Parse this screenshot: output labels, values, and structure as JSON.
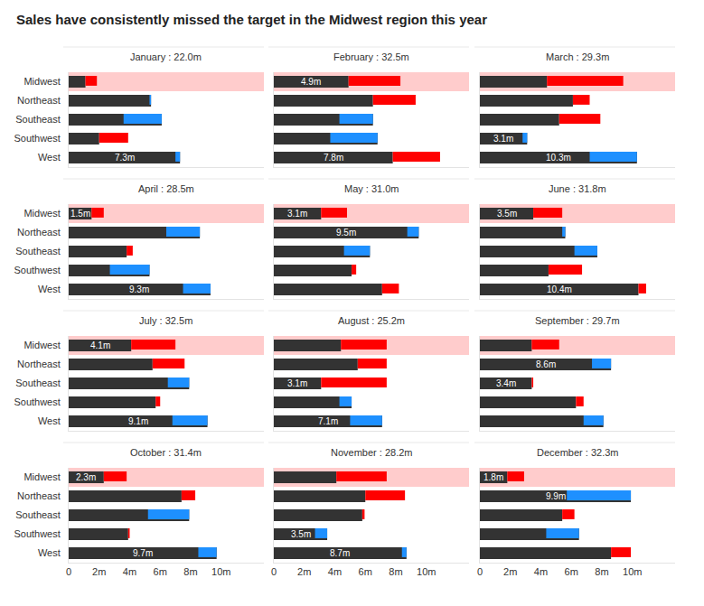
{
  "title": "Sales have consistently missed the target in the Midwest region this year",
  "chart_data": [
    {
      "type": "bar",
      "orientation": "horizontal",
      "title": "January : 22.0m",
      "categories": [
        "Midwest",
        "Northeast",
        "Southeast",
        "Southwest",
        "West"
      ],
      "series": [
        {
          "color": "#333333",
          "values": [
            1.1,
            5.4,
            6.1,
            2.0,
            7.3
          ],
          "value_labels": [
            null,
            null,
            null,
            null,
            "7.3m"
          ]
        },
        {
          "colors": [
            "#ff0000",
            "#1e90ff",
            "#1e90ff",
            "#ff0000",
            "#1e90ff"
          ],
          "values": [
            1.85,
            5.3,
            3.6,
            3.9,
            7.0
          ]
        }
      ],
      "xlim": [
        0,
        12.8
      ],
      "xticks": [
        0,
        {
          "value": 2,
          "label": "2m"
        },
        {
          "value": 4,
          "label": "4m"
        },
        {
          "value": 6,
          "label": "6m"
        },
        {
          "value": 8,
          "label": "8m"
        },
        {
          "value": 10,
          "label": "10m"
        }
      ],
      "data_labels": true,
      "tick_labels": "y"
    },
    {
      "type": "bar",
      "orientation": "horizontal",
      "title": "February : 32.5m",
      "categories": [
        "Midwest",
        "Northeast",
        "Southeast",
        "Southwest",
        "West"
      ],
      "series": [
        {
          "color": "#333333",
          "values": [
            4.9,
            6.5,
            6.5,
            6.8,
            7.8
          ],
          "value_labels": [
            "4.9m",
            null,
            null,
            null,
            "7.8m"
          ]
        },
        {
          "colors": [
            "#ff0000",
            "#ff0000",
            "#1e90ff",
            "#1e90ff",
            "#ff0000"
          ],
          "values": [
            8.3,
            9.3,
            4.3,
            3.7,
            10.9
          ]
        }
      ],
      "xlim": [
        0,
        12.8
      ],
      "xticks": [
        0,
        {
          "value": 2,
          "label": "2m"
        },
        {
          "value": 4,
          "label": "4m"
        },
        {
          "value": 6,
          "label": "6m"
        },
        {
          "value": 8,
          "label": "8m"
        },
        {
          "value": 10,
          "label": "10m"
        }
      ],
      "data_labels": true,
      "tick_labels": false
    },
    {
      "type": "bar",
      "orientation": "horizontal",
      "title": "March : 29.3m",
      "categories": [
        "Midwest",
        "Northeast",
        "Southeast",
        "Southwest",
        "West"
      ],
      "series": [
        {
          "color": "#333333",
          "values": [
            4.4,
            6.1,
            5.2,
            3.1,
            10.3
          ],
          "value_labels": [
            null,
            null,
            null,
            "3.1m",
            "10.3m"
          ]
        },
        {
          "colors": [
            "#ff0000",
            "#ff0000",
            "#ff0000",
            "#1e90ff",
            "#1e90ff"
          ],
          "values": [
            9.4,
            7.2,
            7.9,
            2.8,
            7.2
          ]
        }
      ],
      "xlim": [
        0,
        12.8
      ],
      "xticks": [
        0,
        {
          "value": 2,
          "label": "2m"
        },
        {
          "value": 4,
          "label": "4m"
        },
        {
          "value": 6,
          "label": "6m"
        },
        {
          "value": 8,
          "label": "8m"
        },
        {
          "value": 10,
          "label": "10m"
        }
      ],
      "data_labels": true,
      "tick_labels": false
    },
    {
      "type": "bar",
      "orientation": "horizontal",
      "title": "April : 28.5m",
      "categories": [
        "Midwest",
        "Northeast",
        "Southeast",
        "Southwest",
        "West"
      ],
      "series": [
        {
          "color": "#333333",
          "values": [
            1.5,
            8.6,
            3.8,
            5.3,
            9.3
          ],
          "value_labels": [
            "1.5m",
            null,
            null,
            null,
            "9.3m"
          ]
        },
        {
          "colors": [
            "#ff0000",
            "#1e90ff",
            "#ff0000",
            "#1e90ff",
            "#1e90ff"
          ],
          "values": [
            2.3,
            6.4,
            4.2,
            2.7,
            7.5
          ]
        }
      ],
      "xlim": [
        0,
        12.8
      ],
      "xticks": [
        0,
        {
          "value": 2,
          "label": "2m"
        },
        {
          "value": 4,
          "label": "4m"
        },
        {
          "value": 6,
          "label": "6m"
        },
        {
          "value": 8,
          "label": "8m"
        },
        {
          "value": 10,
          "label": "10m"
        }
      ],
      "data_labels": true,
      "tick_labels": "y"
    },
    {
      "type": "bar",
      "orientation": "horizontal",
      "title": "May : 31.0m",
      "categories": [
        "Midwest",
        "Northeast",
        "Southeast",
        "Southwest",
        "West"
      ],
      "series": [
        {
          "color": "#333333",
          "values": [
            3.1,
            9.5,
            6.3,
            5.1,
            7.1
          ],
          "value_labels": [
            "3.1m",
            "9.5m",
            null,
            null,
            null
          ]
        },
        {
          "colors": [
            "#ff0000",
            "#1e90ff",
            "#1e90ff",
            "#ff0000",
            "#ff0000"
          ],
          "values": [
            4.8,
            8.75,
            4.6,
            5.4,
            8.2
          ]
        }
      ],
      "xlim": [
        0,
        12.8
      ],
      "xticks": [
        0,
        {
          "value": 2,
          "label": "2m"
        },
        {
          "value": 4,
          "label": "4m"
        },
        {
          "value": 6,
          "label": "6m"
        },
        {
          "value": 8,
          "label": "8m"
        },
        {
          "value": 10,
          "label": "10m"
        }
      ],
      "data_labels": true,
      "tick_labels": false
    },
    {
      "type": "bar",
      "orientation": "horizontal",
      "title": "June : 31.8m",
      "categories": [
        "Midwest",
        "Northeast",
        "Southeast",
        "Southwest",
        "West"
      ],
      "series": [
        {
          "color": "#333333",
          "values": [
            3.5,
            5.6,
            7.7,
            4.5,
            10.4
          ],
          "value_labels": [
            "3.5m",
            null,
            null,
            null,
            "10.4m"
          ]
        },
        {
          "colors": [
            "#ff0000",
            "#1e90ff",
            "#1e90ff",
            "#ff0000",
            "#ff0000"
          ],
          "values": [
            5.4,
            5.4,
            6.2,
            6.7,
            10.9
          ]
        }
      ],
      "xlim": [
        0,
        12.8
      ],
      "xticks": [
        0,
        {
          "value": 2,
          "label": "2m"
        },
        {
          "value": 4,
          "label": "4m"
        },
        {
          "value": 6,
          "label": "6m"
        },
        {
          "value": 8,
          "label": "8m"
        },
        {
          "value": 10,
          "label": "10m"
        }
      ],
      "data_labels": true,
      "tick_labels": false
    },
    {
      "type": "bar",
      "orientation": "horizontal",
      "title": "July : 32.5m",
      "categories": [
        "Midwest",
        "Northeast",
        "Southeast",
        "Southwest",
        "West"
      ],
      "series": [
        {
          "color": "#333333",
          "values": [
            4.1,
            5.5,
            7.9,
            5.7,
            9.1
          ],
          "value_labels": [
            "4.1m",
            null,
            null,
            null,
            "9.1m"
          ]
        },
        {
          "colors": [
            "#ff0000",
            "#ff0000",
            "#1e90ff",
            "#ff0000",
            "#1e90ff"
          ],
          "values": [
            7.0,
            7.6,
            6.5,
            6.0,
            6.8
          ]
        }
      ],
      "xlim": [
        0,
        12.8
      ],
      "xticks": [
        0,
        {
          "value": 2,
          "label": "2m"
        },
        {
          "value": 4,
          "label": "4m"
        },
        {
          "value": 6,
          "label": "6m"
        },
        {
          "value": 8,
          "label": "8m"
        },
        {
          "value": 10,
          "label": "10m"
        }
      ],
      "data_labels": true,
      "tick_labels": "y"
    },
    {
      "type": "bar",
      "orientation": "horizontal",
      "title": "August : 25.2m",
      "categories": [
        "Midwest",
        "Northeast",
        "Southeast",
        "Southwest",
        "West"
      ],
      "series": [
        {
          "color": "#333333",
          "values": [
            4.4,
            5.5,
            3.1,
            5.1,
            7.1
          ],
          "value_labels": [
            null,
            null,
            "3.1m",
            null,
            "7.1m"
          ]
        },
        {
          "colors": [
            "#ff0000",
            "#ff0000",
            "#ff0000",
            "#1e90ff",
            "#1e90ff"
          ],
          "values": [
            7.4,
            7.4,
            7.4,
            4.3,
            5.0
          ]
        }
      ],
      "xlim": [
        0,
        12.8
      ],
      "xticks": [
        0,
        {
          "value": 2,
          "label": "2m"
        },
        {
          "value": 4,
          "label": "4m"
        },
        {
          "value": 6,
          "label": "6m"
        },
        {
          "value": 8,
          "label": "8m"
        },
        {
          "value": 10,
          "label": "10m"
        }
      ],
      "data_labels": true,
      "tick_labels": false
    },
    {
      "type": "bar",
      "orientation": "horizontal",
      "title": "September : 29.7m",
      "categories": [
        "Midwest",
        "Northeast",
        "Southeast",
        "Southwest",
        "West"
      ],
      "series": [
        {
          "color": "#333333",
          "values": [
            3.4,
            8.6,
            3.4,
            6.3,
            8.1
          ],
          "value_labels": [
            null,
            "8.6m",
            "3.4m",
            null,
            null
          ]
        },
        {
          "colors": [
            "#ff0000",
            "#1e90ff",
            "#ff0000",
            "#ff0000",
            "#1e90ff"
          ],
          "values": [
            5.2,
            7.35,
            3.5,
            6.8,
            6.8
          ]
        }
      ],
      "xlim": [
        0,
        12.8
      ],
      "xticks": [
        0,
        {
          "value": 2,
          "label": "2m"
        },
        {
          "value": 4,
          "label": "4m"
        },
        {
          "value": 6,
          "label": "6m"
        },
        {
          "value": 8,
          "label": "8m"
        },
        {
          "value": 10,
          "label": "10m"
        }
      ],
      "data_labels": true,
      "tick_labels": false
    },
    {
      "type": "bar",
      "orientation": "horizontal",
      "title": "October : 31.4m",
      "categories": [
        "Midwest",
        "Northeast",
        "Southeast",
        "Southwest",
        "West"
      ],
      "series": [
        {
          "color": "#333333",
          "values": [
            2.3,
            7.4,
            7.9,
            3.9,
            9.7
          ],
          "value_labels": [
            "2.3m",
            null,
            null,
            null,
            "9.7m"
          ]
        },
        {
          "colors": [
            "#ff0000",
            "#ff0000",
            "#1e90ff",
            "#ff0000",
            "#1e90ff"
          ],
          "values": [
            3.8,
            8.3,
            5.2,
            4.0,
            8.5
          ]
        }
      ],
      "xlim": [
        0,
        12.8
      ],
      "xticks": [
        0,
        {
          "value": 2,
          "label": "2m"
        },
        {
          "value": 4,
          "label": "4m"
        },
        {
          "value": 6,
          "label": "6m"
        },
        {
          "value": 8,
          "label": "8m"
        },
        {
          "value": 10,
          "label": "10m"
        }
      ],
      "data_labels": true
    },
    {
      "type": "bar",
      "orientation": "horizontal",
      "title": "November : 28.2m",
      "categories": [
        "Midwest",
        "Northeast",
        "Southeast",
        "Southwest",
        "West"
      ],
      "series": [
        {
          "color": "#333333",
          "values": [
            4.1,
            6.0,
            5.8,
            3.5,
            8.7
          ],
          "value_labels": [
            null,
            null,
            null,
            "3.5m",
            "8.7m"
          ]
        },
        {
          "colors": [
            "#ff0000",
            "#ff0000",
            "#ff0000",
            "#1e90ff",
            "#1e90ff"
          ],
          "values": [
            7.4,
            8.6,
            5.95,
            2.7,
            8.4
          ]
        }
      ],
      "xlim": [
        0,
        12.8
      ],
      "xticks": [
        0,
        {
          "value": 2,
          "label": "2m"
        },
        {
          "value": 4,
          "label": "4m"
        },
        {
          "value": 6,
          "label": "6m"
        },
        {
          "value": 8,
          "label": "8m"
        },
        {
          "value": 10,
          "label": "10m"
        }
      ],
      "data_labels": true,
      "tick_labels": "x"
    },
    {
      "type": "bar",
      "orientation": "horizontal",
      "title": "December : 32.3m",
      "categories": [
        "Midwest",
        "Northeast",
        "Southeast",
        "Southwest",
        "West"
      ],
      "series": [
        {
          "color": "#333333",
          "values": [
            1.8,
            9.9,
            5.4,
            6.5,
            8.6
          ],
          "value_labels": [
            "1.8m",
            "9.9m",
            null,
            null,
            null
          ]
        },
        {
          "colors": [
            "#ff0000",
            "#1e90ff",
            "#ff0000",
            "#1e90ff",
            "#ff0000"
          ],
          "values": [
            2.9,
            5.7,
            6.2,
            4.35,
            9.9
          ]
        }
      ],
      "xlim": [
        0,
        12.8
      ],
      "xticks": [
        0,
        {
          "value": 2,
          "label": "2m"
        },
        {
          "value": 4,
          "label": "4m"
        },
        {
          "value": 6,
          "label": "6m"
        },
        {
          "value": 8,
          "label": "8m"
        },
        {
          "value": 10,
          "label": "10m"
        }
      ],
      "data_labels": true,
      "tick_labels": "x"
    }
  ]
}
